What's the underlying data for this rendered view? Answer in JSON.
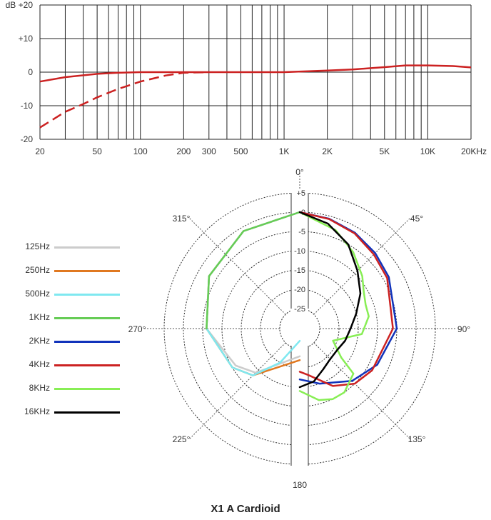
{
  "chart_data": [
    {
      "type": "line",
      "xscale": "log",
      "xlim": [
        20,
        20000
      ],
      "ylim": [
        -20,
        20
      ],
      "x_ticks": [
        "20",
        "50",
        "100",
        "200",
        "300",
        "500",
        "1K",
        "2K",
        "5K",
        "10K",
        "20KHz"
      ],
      "y_ticks": [
        "dB +20",
        "+10",
        "0",
        "-10",
        "-20"
      ],
      "grid": true,
      "series": [
        {
          "style": "solid",
          "color": "#cc2222",
          "x": [
            20,
            30,
            50,
            70,
            100,
            200,
            500,
            1000,
            2000,
            3000,
            5000,
            7000,
            8000,
            10000,
            15000,
            20000
          ],
          "y": [
            -2.8,
            -1.5,
            -0.5,
            -0.2,
            0,
            0,
            0,
            0,
            0.5,
            0.8,
            1.5,
            2.0,
            2.0,
            2.0,
            1.8,
            1.4
          ]
        },
        {
          "style": "dashed",
          "color": "#cc2222",
          "x": [
            20,
            30,
            40,
            50,
            70,
            100,
            150,
            200,
            300
          ],
          "y": [
            -16.5,
            -11.8,
            -9.5,
            -7.5,
            -5.0,
            -2.8,
            -1.0,
            -0.2,
            0
          ]
        }
      ]
    },
    {
      "type": "polar",
      "angle_labels": [
        "0°",
        "45°",
        "90°",
        "135°",
        "180",
        "225°",
        "270°",
        "315°"
      ],
      "radial_labels": [
        "+5",
        "0",
        "-5",
        "-10",
        "-15",
        "-20",
        "-25"
      ],
      "rlim": [
        -30,
        5
      ],
      "title": "X1 A Cardioid",
      "legend": [
        "125Hz",
        "250Hz",
        "500Hz",
        "1KHz",
        "2KHz",
        "4KHz",
        "8KHz",
        "16KHz"
      ],
      "colors": [
        "#cccccc",
        "#e07820",
        "#7fe8f0",
        "#66cc55",
        "#1133bb",
        "#cc2222",
        "#88ee55",
        "#000000"
      ],
      "series": [
        {
          "name": "125Hz",
          "angle": [
            180,
            225,
            240,
            270,
            300,
            330,
            360
          ],
          "db": [
            -23,
            -14,
            -11,
            -6,
            -3,
            -1,
            0
          ]
        },
        {
          "name": "250Hz",
          "angle": [
            180,
            225,
            240,
            270,
            300,
            330,
            360
          ],
          "db": [
            -22,
            -13,
            -10,
            -6,
            -3,
            -1,
            0
          ]
        },
        {
          "name": "500Hz",
          "angle": [
            180,
            210,
            225,
            240,
            270,
            300,
            330,
            360
          ],
          "db": [
            -27,
            -20,
            -13,
            -10,
            -6,
            -3,
            -1,
            0
          ]
        },
        {
          "name": "1KHz",
          "angle": [
            270,
            300,
            330,
            360
          ],
          "db": [
            -6,
            -3,
            -1,
            0
          ]
        },
        {
          "name": "2KHz",
          "angle": [
            0,
            15,
            30,
            45,
            60,
            90,
            115,
            135,
            160,
            180
          ],
          "db": [
            0,
            -0.7,
            -1.5,
            -2.5,
            -3.5,
            -5,
            -8,
            -11,
            -15,
            -17
          ]
        },
        {
          "name": "4KHz",
          "angle": [
            0,
            15,
            30,
            45,
            60,
            90,
            120,
            135,
            150,
            170,
            180
          ],
          "db": [
            0,
            -0.8,
            -1.7,
            -3,
            -4,
            -6,
            -8.5,
            -10,
            -13,
            -18,
            -19
          ]
        },
        {
          "name": "8KHz",
          "angle": [
            0,
            20,
            35,
            50,
            60,
            70,
            80,
            95,
            110,
            125,
            130,
            145,
            155,
            165,
            180
          ],
          "db": [
            0,
            -3,
            -6,
            -9,
            -11,
            -12,
            -12,
            -14,
            -21,
            -17,
            -12,
            -10,
            -10,
            -11,
            -14
          ]
        },
        {
          "name": "16KHz",
          "angle": [
            0,
            15,
            30,
            45,
            60,
            75,
            90,
            105,
            120,
            135,
            150,
            165,
            180
          ],
          "db": [
            0,
            -2,
            -5,
            -9,
            -12,
            -15,
            -17,
            -18,
            -19,
            -19,
            -18,
            -16,
            -15
          ]
        }
      ]
    }
  ]
}
